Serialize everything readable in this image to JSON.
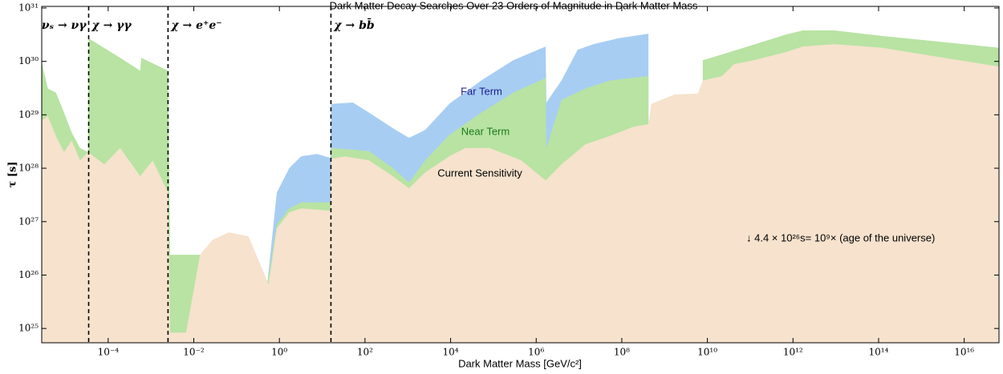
{
  "chart_data": {
    "type": "area",
    "title": "Dark Matter Decay Searches Over 23 Orders of Magnitude in Dark Matter Mass",
    "xlabel": "Dark Matter Mass [GeV/c²]",
    "ylabel": "τ [s]",
    "xscale": "log",
    "yscale": "log",
    "xlim": [
      2.8e-06,
      6.5e+16
    ],
    "ylim": [
      5.4e+24,
      1.07e+31
    ],
    "xticks": [
      {
        "value": 0.0001,
        "label": "10⁻⁴"
      },
      {
        "value": 0.01,
        "label": "10⁻²"
      },
      {
        "value": 1,
        "label": "10⁰"
      },
      {
        "value": 100.0,
        "label": "10²"
      },
      {
        "value": 10000.0,
        "label": "10⁴"
      },
      {
        "value": 1000000.0,
        "label": "10⁶"
      },
      {
        "value": 100000000.0,
        "label": "10⁸"
      },
      {
        "value": 10000000000.0,
        "label": "10¹⁰"
      },
      {
        "value": 1000000000000.0,
        "label": "10¹²"
      },
      {
        "value": 100000000000000.0,
        "label": "10¹⁴"
      },
      {
        "value": 1e+16,
        "label": "10¹⁶"
      }
    ],
    "yticks": [
      {
        "value": 1e+25,
        "label": "10²⁵"
      },
      {
        "value": 1e+26,
        "label": "10²⁶"
      },
      {
        "value": 1e+27,
        "label": "10²⁷"
      },
      {
        "value": 1e+28,
        "label": "10²⁸"
      },
      {
        "value": 1e+29,
        "label": "10²⁹"
      },
      {
        "value": 1e+30,
        "label": "10³⁰"
      },
      {
        "value": 1e+31,
        "label": "10³¹"
      }
    ],
    "dividers": [
      3.5e-05,
      0.0025,
      16
    ],
    "decay_labels": [
      "νₛ → νγ",
      "χ → γγ",
      "χ → e⁺e⁻",
      "χ → bb̄"
    ],
    "annotation": "↓ 4.4 × 10²⁶s= 10⁹× (age of the universe)",
    "series": [
      {
        "name": "Far Term",
        "color": "#a7cdf3",
        "label_color": "#1c1c8c",
        "x": [
          0.52,
          0.87,
          1.7,
          3.2,
          7.5,
          15.6,
          16.3,
          52,
          124,
          450,
          1070,
          2550,
          9300,
          52000.0,
          290000.0,
          1660000.0,
          1730000.0,
          3900000.0,
          9300000.0,
          22000000.0,
          81000000.0,
          420000000.0
        ],
        "values": [
          6.7e+25,
          3.5e+27,
          1e+28,
          1.67e+28,
          1.85e+28,
          1.56e+28,
          1.6e+29,
          1.7e+29,
          1.1e+29,
          5.6e+28,
          3.7e+28,
          5.2e+28,
          1.6e+29,
          4.4e+29,
          1.05e+30,
          1.9e+30,
          1.7e+29,
          4.4e+29,
          1.65e+30,
          2.1e+30,
          2.7e+30,
          3.3e+30
        ]
      },
      {
        "name": "Near Term",
        "color": "#b8e3a3",
        "label_color": "#1d7a1d",
        "x": [
          2.8e-06,
          3.9e-06,
          6e-06,
          9.3e-06,
          1.4e-05,
          2.2e-05,
          3.4e-05,
          3.5e-05,
          0.00019,
          0.00056,
          0.00059,
          0.0025,
          0.0028,
          0.014,
          0.3,
          0.52,
          0.87,
          1.7,
          3.2,
          15.6,
          16.3,
          124,
          450,
          1070,
          2550,
          9300,
          52000.0,
          290000.0,
          1660000.0,
          1730000.0,
          3900000.0,
          14000000.0,
          52000000.0,
          420000000.0,
          2000000000.0,
          7800000000.0,
          34000000000.0,
          700000000000.0,
          1700000000000.0,
          9300000000000.0,
          120000000000000.0,
          6.5e+16
        ],
        "values": [
          9.5e+29,
          3.1e+29,
          2.6e+29,
          1.1e+29,
          4.7e+28,
          2.4e+28,
          2e+28,
          2.7e+30,
          1.17e+30,
          6.7e+29,
          1.17e+30,
          6.7e+29,
          2.4e+26,
          2.4e+26,
          null,
          6.7e+25,
          8.9e+26,
          1.77e+27,
          2.3e+27,
          2.3e+27,
          2.4e+28,
          2.1e+28,
          1e+28,
          5.4e+27,
          1.4e+28,
          4.2e+28,
          1.1e+29,
          2.6e+29,
          4.9e+29,
          2.4e+28,
          1.9e+29,
          3.1e+29,
          4.4e+29,
          5.3e+29,
          null,
          1.05e+30,
          1.5e+30,
          3.2e+30,
          3.8e+30,
          3.8e+30,
          3e+30,
          1.8e+30
        ]
      },
      {
        "name": "Current Sensitivity",
        "color": "#f6e2cd",
        "label_color": "#000000",
        "x": [
          2.8e-06,
          3.9e-06,
          6e-06,
          9.3e-06,
          1.4e-05,
          2.2e-05,
          3.4e-05,
          8.1e-05,
          0.00019,
          0.00056,
          0.0011,
          0.0025,
          0.0028,
          0.0066,
          0.014,
          0.027,
          0.065,
          0.19,
          0.56,
          0.87,
          1.7,
          3.2,
          9.3,
          15.6,
          16.3,
          34,
          124,
          450,
          1070,
          2550,
          9300,
          22000.0,
          81000.0,
          450000.0,
          1660000.0,
          3900000.0,
          14000000.0,
          52000000.0,
          190000000.0,
          420000000.0,
          490000000.0,
          1700000000.0,
          6000000000.0,
          7800000000.0,
          22000000000.0,
          42000000000.0,
          120000000000.0,
          700000000000.0,
          1700000000000.0,
          9300000000000.0,
          120000000000000.0,
          6.5e+16
        ],
        "values": [
          7.9e+28,
          9.4e+28,
          4e+28,
          2e+28,
          3.3e+28,
          1.4e+28,
          2e+28,
          1.18e+28,
          2.4e+28,
          7.1e+27,
          1.4e+28,
          3.5e+27,
          8.4e+24,
          8.4e+24,
          2.4e+26,
          4.5e+26,
          6.3e+26,
          5.3e+26,
          6.7e+25,
          7.5e+26,
          1.5e+27,
          1.77e+27,
          1.66e+27,
          1.6e+27,
          1.5e+28,
          1.67e+28,
          1.4e+28,
          7.1e+27,
          4.2e+27,
          8.4e+27,
          1.67e+28,
          2.4e+28,
          2.4e+28,
          1.4e+28,
          5.9e+27,
          1.18e+28,
          2.8e+28,
          4e+28,
          6e+28,
          6.7e+28,
          1.6e+29,
          2.4e+29,
          2.5e+29,
          4.4e+29,
          5.3e+29,
          8.9e+29,
          1.05e+30,
          1.5e+30,
          1.9e+30,
          2.1e+30,
          1.8e+30,
          8e+29
        ]
      }
    ]
  }
}
